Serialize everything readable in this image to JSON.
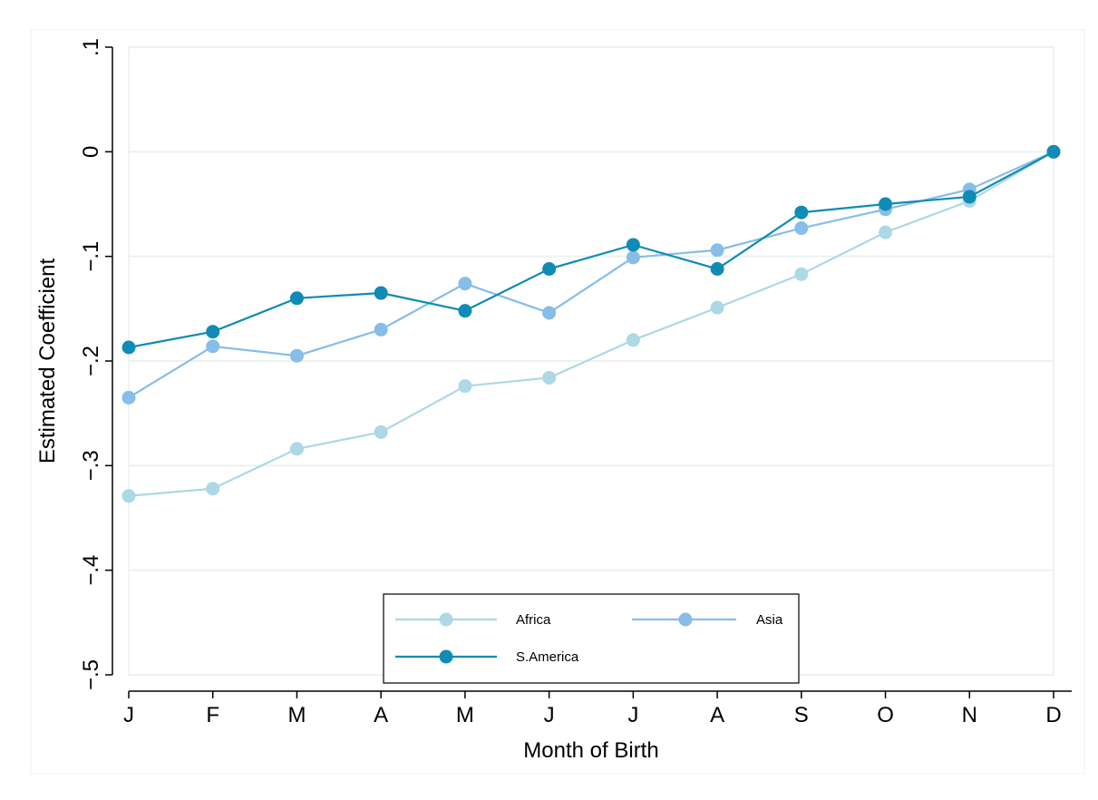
{
  "chart_data": {
    "type": "line",
    "title": "",
    "xlabel": "Month of Birth",
    "ylabel": "Estimated Coefficient",
    "categories": [
      "J",
      "F",
      "M",
      "A",
      "M",
      "J",
      "J",
      "A",
      "S",
      "O",
      "N",
      "D"
    ],
    "y_ticks": [
      {
        "value": -0.5,
        "label": "−.5"
      },
      {
        "value": -0.4,
        "label": "−.4"
      },
      {
        "value": -0.3,
        "label": "−.3"
      },
      {
        "value": -0.2,
        "label": "−.2"
      },
      {
        "value": -0.1,
        "label": "−.1"
      },
      {
        "value": 0,
        "label": "0"
      },
      {
        "value": 0.1,
        "label": ".1"
      }
    ],
    "ylim": [
      -0.5,
      0.1
    ],
    "grid": true,
    "legend_position": "bottom-center",
    "series": [
      {
        "name": "Africa",
        "color": "#add8e6",
        "values": [
          -0.329,
          -0.322,
          -0.284,
          -0.268,
          -0.224,
          -0.216,
          -0.18,
          -0.149,
          -0.117,
          -0.077,
          -0.047,
          0.0
        ]
      },
      {
        "name": "Asia",
        "color": "#87bde8",
        "values": [
          -0.235,
          -0.186,
          -0.195,
          -0.17,
          -0.126,
          -0.154,
          -0.101,
          -0.094,
          -0.073,
          -0.055,
          -0.036,
          0.0
        ]
      },
      {
        "name": "S.America",
        "color": "#0f8bb5",
        "values": [
          -0.187,
          -0.172,
          -0.14,
          -0.135,
          -0.152,
          -0.112,
          -0.089,
          -0.112,
          -0.058,
          -0.05,
          -0.043,
          0.0
        ]
      }
    ]
  }
}
